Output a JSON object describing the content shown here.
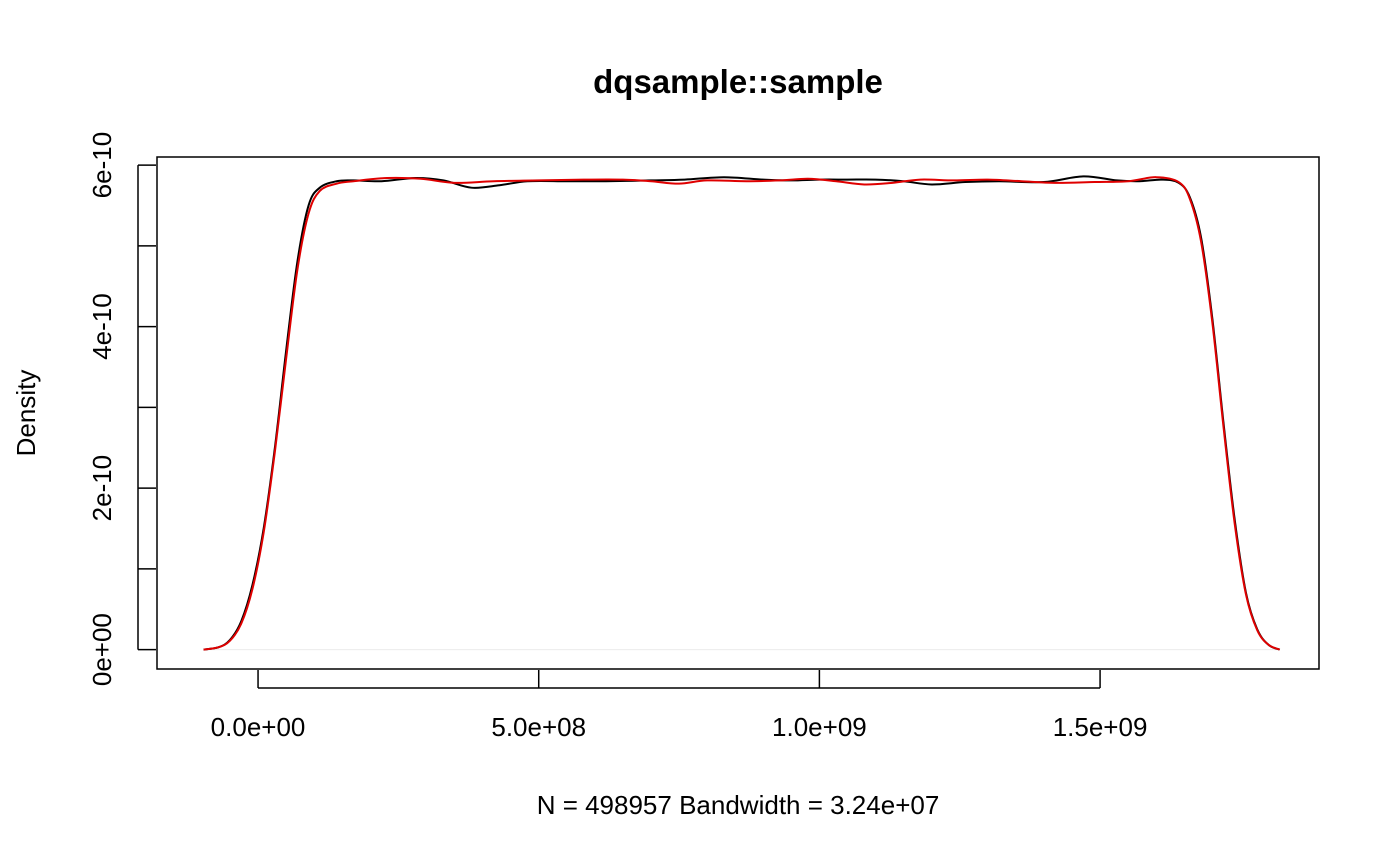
{
  "chart_data": {
    "type": "line",
    "title": "dqsample::sample",
    "xlabel": "N = 498957   Bandwidth = 3.24e+07",
    "ylabel": "Density",
    "xlim": [
      -180000000,
      1890000000
    ],
    "ylim": [
      -2.4e-11,
      6.1e-10
    ],
    "x_ticks": [
      0,
      500000000,
      1000000000,
      1500000000
    ],
    "x_tick_labels": [
      "0.0e+00",
      "5.0e+08",
      "1.0e+09",
      "1.5e+09"
    ],
    "y_ticks": [
      0,
      1e-10,
      2e-10,
      3e-10,
      4e-10,
      5e-10,
      6e-10
    ],
    "y_tick_labels": [
      "0e+00",
      "",
      "2e-10",
      "",
      "4e-10",
      "",
      "6e-10"
    ],
    "grid": false,
    "baseline": 0,
    "series": [
      {
        "color": "#000000",
        "points": [
          [
            -97000000,
            0.0
          ],
          [
            -70000000,
            3e-12
          ],
          [
            -50000000,
            1.2e-11
          ],
          [
            -30000000,
            3.5e-11
          ],
          [
            -10000000,
            8e-11
          ],
          [
            10000000,
            1.5e-10
          ],
          [
            30000000,
            2.5e-10
          ],
          [
            50000000,
            3.7e-10
          ],
          [
            70000000,
            4.8e-10
          ],
          [
            90000000,
            5.5e-10
          ],
          [
            110000000,
            5.72e-10
          ],
          [
            140000000,
            5.8e-10
          ],
          [
            170000000,
            5.81e-10
          ],
          [
            220000000,
            5.8e-10
          ],
          [
            280000000,
            5.84e-10
          ],
          [
            330000000,
            5.81e-10
          ],
          [
            380000000,
            5.72e-10
          ],
          [
            430000000,
            5.75e-10
          ],
          [
            480000000,
            5.8e-10
          ],
          [
            550000000,
            5.8e-10
          ],
          [
            620000000,
            5.8e-10
          ],
          [
            700000000,
            5.81e-10
          ],
          [
            760000000,
            5.82e-10
          ],
          [
            830000000,
            5.85e-10
          ],
          [
            900000000,
            5.82e-10
          ],
          [
            950000000,
            5.81e-10
          ],
          [
            1000000000,
            5.82e-10
          ],
          [
            1050000000,
            5.82e-10
          ],
          [
            1100000000,
            5.82e-10
          ],
          [
            1150000000,
            5.8e-10
          ],
          [
            1200000000,
            5.76e-10
          ],
          [
            1260000000,
            5.79e-10
          ],
          [
            1320000000,
            5.8e-10
          ],
          [
            1400000000,
            5.79e-10
          ],
          [
            1470000000,
            5.86e-10
          ],
          [
            1530000000,
            5.81e-10
          ],
          [
            1570000000,
            5.8e-10
          ],
          [
            1610000000,
            5.82e-10
          ],
          [
            1640000000,
            5.78e-10
          ],
          [
            1660000000,
            5.6e-10
          ],
          [
            1680000000,
            5.1e-10
          ],
          [
            1700000000,
            4.1e-10
          ],
          [
            1720000000,
            2.8e-10
          ],
          [
            1740000000,
            1.6e-10
          ],
          [
            1760000000,
            7e-11
          ],
          [
            1780000000,
            2.5e-11
          ],
          [
            1800000000,
            6e-12
          ],
          [
            1820000000,
            0.0
          ]
        ]
      },
      {
        "color": "#df0000",
        "points": [
          [
            -97000000,
            0.0
          ],
          [
            -70000000,
            3e-12
          ],
          [
            -50000000,
            1.1e-11
          ],
          [
            -30000000,
            3.2e-11
          ],
          [
            -10000000,
            7.5e-11
          ],
          [
            10000000,
            1.45e-10
          ],
          [
            30000000,
            2.45e-10
          ],
          [
            50000000,
            3.6e-10
          ],
          [
            70000000,
            4.7e-10
          ],
          [
            90000000,
            5.4e-10
          ],
          [
            110000000,
            5.68e-10
          ],
          [
            140000000,
            5.77e-10
          ],
          [
            170000000,
            5.8e-10
          ],
          [
            230000000,
            5.84e-10
          ],
          [
            290000000,
            5.83e-10
          ],
          [
            350000000,
            5.78e-10
          ],
          [
            420000000,
            5.8e-10
          ],
          [
            500000000,
            5.81e-10
          ],
          [
            580000000,
            5.82e-10
          ],
          [
            650000000,
            5.82e-10
          ],
          [
            700000000,
            5.8e-10
          ],
          [
            750000000,
            5.77e-10
          ],
          [
            800000000,
            5.81e-10
          ],
          [
            870000000,
            5.8e-10
          ],
          [
            930000000,
            5.81e-10
          ],
          [
            980000000,
            5.83e-10
          ],
          [
            1030000000,
            5.8e-10
          ],
          [
            1080000000,
            5.76e-10
          ],
          [
            1130000000,
            5.78e-10
          ],
          [
            1180000000,
            5.82e-10
          ],
          [
            1240000000,
            5.81e-10
          ],
          [
            1300000000,
            5.82e-10
          ],
          [
            1360000000,
            5.8e-10
          ],
          [
            1420000000,
            5.78e-10
          ],
          [
            1490000000,
            5.79e-10
          ],
          [
            1550000000,
            5.8e-10
          ],
          [
            1600000000,
            5.85e-10
          ],
          [
            1640000000,
            5.79e-10
          ],
          [
            1660000000,
            5.58e-10
          ],
          [
            1680000000,
            5.05e-10
          ],
          [
            1700000000,
            4.05e-10
          ],
          [
            1720000000,
            2.75e-10
          ],
          [
            1740000000,
            1.55e-10
          ],
          [
            1760000000,
            6.8e-11
          ],
          [
            1780000000,
            2.4e-11
          ],
          [
            1800000000,
            6e-12
          ],
          [
            1820000000,
            0.0
          ]
        ]
      }
    ]
  }
}
